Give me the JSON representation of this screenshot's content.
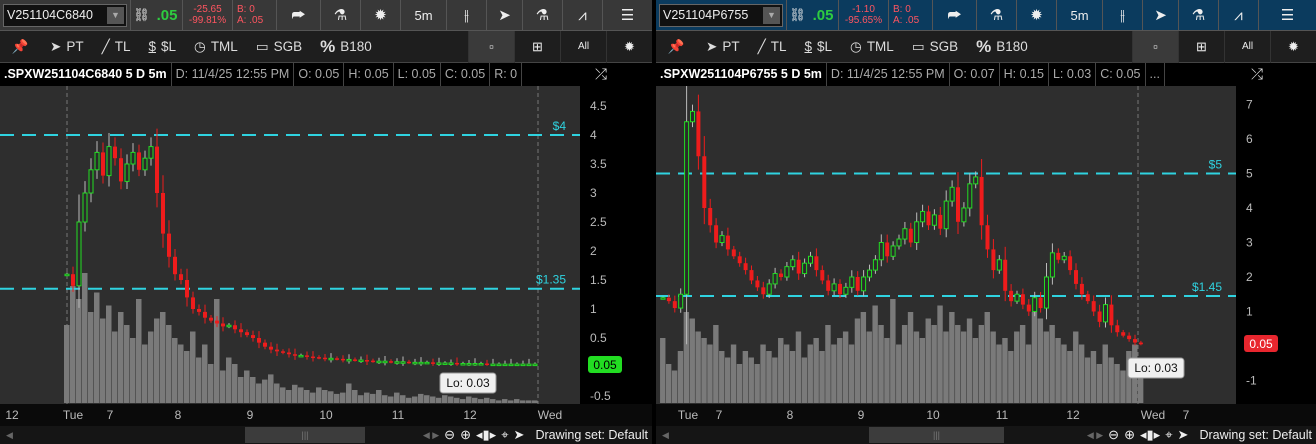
{
  "panels": [
    {
      "symbol": "V251104C6840",
      "last": ".05",
      "change": "-25.65",
      "change_pct": "-99.81%",
      "bid": "B: 0",
      "ask": "A: .05",
      "timeframe": "5m",
      "drawing_tools": {
        "pt": "PT",
        "tl": "TL",
        "sl": "$L",
        "tml": "TML",
        "sgb": "SGB",
        "b180": "B180",
        "all": "All"
      },
      "info": {
        "title": ".SPXW251104C6840 5 D 5m",
        "date": "D: 11/4/25 12:55 PM",
        "open": "O: 0.05",
        "high": "H: 0.05",
        "low": "L: 0.05",
        "close": "C: 0.05",
        "extra": "R: 0"
      },
      "price_ticks": [
        "4.5",
        "4",
        "3.5",
        "3",
        "2.5",
        "2",
        "1.5",
        "1",
        "0.5",
        "0",
        "-0.5"
      ],
      "time_labels": [
        "12",
        "Tue",
        "7",
        "8",
        "9",
        "10",
        "11",
        "12",
        "Wed"
      ],
      "levels": [
        {
          "label": "$4",
          "value": 4
        },
        {
          "label": "$1.35",
          "value": 1.35
        }
      ],
      "last_badge": "0.05",
      "last_badge_color": "#22dd22",
      "low_label": "Lo: 0.03",
      "drawing_set": "Drawing set: Default",
      "chart_data": {
        "type": "candlestick",
        "ylim": [
          -0.5,
          4.7
        ],
        "closes": [
          1.6,
          1.4,
          2.5,
          3.0,
          3.4,
          3.7,
          3.3,
          3.8,
          3.6,
          3.2,
          3.5,
          3.7,
          3.4,
          3.6,
          3.8,
          3.0,
          2.3,
          1.9,
          1.6,
          1.5,
          1.2,
          1.0,
          0.95,
          0.85,
          0.8,
          0.75,
          0.7,
          0.72,
          0.65,
          0.6,
          0.55,
          0.5,
          0.42,
          0.35,
          0.3,
          0.27,
          0.25,
          0.22,
          0.2,
          0.2,
          0.18,
          0.17,
          0.16,
          0.15,
          0.15,
          0.14,
          0.13,
          0.13,
          0.12,
          0.12,
          0.11,
          0.1,
          0.1,
          0.1,
          0.09,
          0.09,
          0.09,
          0.08,
          0.08,
          0.08,
          0.08,
          0.07,
          0.07,
          0.07,
          0.07,
          0.06,
          0.06,
          0.06,
          0.06,
          0.06,
          0.05,
          0.05,
          0.05,
          0.05,
          0.05,
          0.05,
          0.05,
          0.05,
          0.05
        ],
        "volume": [
          60,
          90,
          80,
          100,
          70,
          85,
          65,
          75,
          55,
          70,
          60,
          50,
          80,
          45,
          55,
          65,
          70,
          60,
          50,
          45,
          40,
          55,
          35,
          45,
          30,
          80,
          25,
          35,
          30,
          20,
          25,
          20,
          15,
          18,
          22,
          15,
          12,
          10,
          14,
          12,
          10,
          8,
          12,
          10,
          9,
          7,
          8,
          15,
          10,
          6,
          8,
          7,
          10,
          6,
          5,
          8,
          6,
          4,
          5,
          7,
          6,
          5,
          4,
          6,
          5,
          4,
          3,
          5,
          4,
          3,
          4,
          3,
          2,
          3,
          2,
          3,
          2,
          2,
          2
        ]
      }
    },
    {
      "symbol": "V251104P6755",
      "last": ".05",
      "change": "-1.10",
      "change_pct": "-95.65%",
      "bid": "B: 0",
      "ask": "A: .05",
      "timeframe": "5m",
      "drawing_tools": {
        "pt": "PT",
        "tl": "TL",
        "sl": "$L",
        "tml": "TML",
        "sgb": "SGB",
        "b180": "B180",
        "all": "All"
      },
      "info": {
        "title": ".SPXW251104P6755 5 D 5m",
        "date": "D: 11/4/25 12:55 PM",
        "open": "O: 0.07",
        "high": "H: 0.15",
        "low": "L: 0.03",
        "close": "C: 0.05",
        "extra": "..."
      },
      "price_ticks": [
        "7",
        "6",
        "5",
        "4",
        "3",
        "2",
        "1",
        "0",
        "-1"
      ],
      "time_labels": [
        "Tue",
        "7",
        "8",
        "9",
        "10",
        "11",
        "12",
        "Wed",
        "7"
      ],
      "levels": [
        {
          "label": "$5",
          "value": 5
        },
        {
          "label": "$1.45",
          "value": 1.45
        }
      ],
      "last_badge": "0.05",
      "last_badge_color": "#e8262e",
      "low_label": "Lo: 0.03",
      "drawing_set": "Drawing set: Default",
      "chart_data": {
        "type": "candlestick",
        "ylim": [
          -1.6,
          7.5
        ],
        "closes": [
          1.4,
          1.3,
          1.1,
          1.5,
          6.5,
          6.8,
          5.5,
          4.0,
          3.5,
          3.0,
          3.2,
          2.8,
          2.6,
          2.4,
          2.2,
          1.9,
          1.7,
          1.5,
          1.8,
          2.1,
          2.0,
          2.3,
          2.5,
          2.1,
          2.4,
          2.6,
          2.2,
          1.9,
          1.6,
          1.8,
          1.5,
          1.7,
          2.0,
          1.6,
          2.0,
          2.2,
          2.5,
          3.0,
          2.6,
          2.9,
          3.1,
          3.4,
          3.0,
          3.6,
          3.9,
          3.5,
          3.8,
          3.4,
          4.2,
          4.6,
          3.6,
          4.0,
          4.7,
          4.9,
          3.5,
          2.8,
          2.2,
          2.5,
          1.6,
          1.3,
          1.5,
          1.2,
          1.0,
          1.4,
          1.1,
          2.0,
          2.7,
          2.5,
          2.6,
          2.2,
          1.8,
          1.5,
          1.3,
          1.0,
          0.7,
          1.2,
          0.6,
          0.4,
          0.3,
          0.2,
          0.1,
          0.05
        ],
        "volume": [
          50,
          30,
          25,
          40,
          70,
          65,
          55,
          50,
          45,
          60,
          40,
          35,
          45,
          30,
          40,
          35,
          30,
          45,
          40,
          35,
          50,
          45,
          40,
          55,
          35,
          45,
          50,
          40,
          60,
          45,
          50,
          55,
          45,
          65,
          70,
          55,
          75,
          60,
          50,
          80,
          45,
          60,
          70,
          55,
          50,
          65,
          60,
          75,
          55,
          70,
          60,
          55,
          65,
          50,
          60,
          70,
          55,
          45,
          50,
          40,
          55,
          60,
          45,
          70,
          65,
          55,
          60,
          50,
          45,
          40,
          55,
          45,
          35,
          40,
          30,
          45,
          35,
          30,
          25,
          40,
          45,
          20
        ]
      }
    }
  ],
  "colors": {
    "up": "#22dd22",
    "down": "#ee1c1c",
    "level": "#2fd3e0",
    "volume": "#7a7a7a",
    "plot_bg": "#2e2e2e",
    "left_toolbar": "#383838",
    "right_toolbar": "#0b3b5e"
  }
}
